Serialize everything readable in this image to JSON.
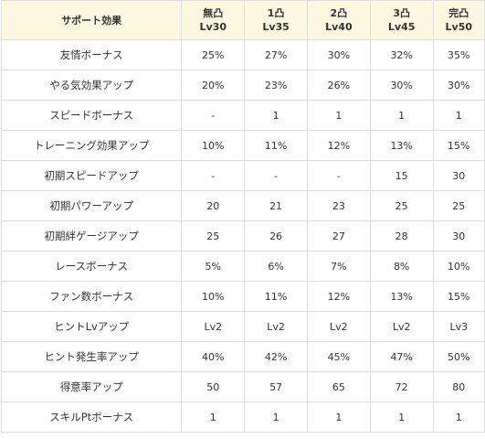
{
  "header": {
    "effect_label": "サポート効果",
    "levels": [
      {
        "name": "無凸",
        "lv": "Lv30"
      },
      {
        "name": "1凸",
        "lv": "Lv35"
      },
      {
        "name": "2凸",
        "lv": "Lv40"
      },
      {
        "name": "3凸",
        "lv": "Lv45"
      },
      {
        "name": "完凸",
        "lv": "Lv50"
      }
    ]
  },
  "rows": [
    {
      "effect": "友情ボーナス",
      "values": [
        "25%",
        "27%",
        "30%",
        "32%",
        "35%"
      ]
    },
    {
      "effect": "やる気効果アップ",
      "values": [
        "20%",
        "23%",
        "26%",
        "30%",
        "30%"
      ]
    },
    {
      "effect": "スピードボーナス",
      "values": [
        "-",
        "1",
        "1",
        "1",
        "1"
      ]
    },
    {
      "effect": "トレーニング効果アップ",
      "values": [
        "10%",
        "11%",
        "12%",
        "13%",
        "15%"
      ]
    },
    {
      "effect": "初期スピードアップ",
      "values": [
        "-",
        "-",
        "-",
        "15",
        "30"
      ]
    },
    {
      "effect": "初期パワーアップ",
      "values": [
        "20",
        "21",
        "23",
        "25",
        "25"
      ]
    },
    {
      "effect": "初期絆ゲージアップ",
      "values": [
        "25",
        "26",
        "27",
        "28",
        "30"
      ]
    },
    {
      "effect": "レースボーナス",
      "values": [
        "5%",
        "6%",
        "7%",
        "8%",
        "10%"
      ]
    },
    {
      "effect": "ファン数ボーナス",
      "values": [
        "10%",
        "11%",
        "12%",
        "13%",
        "15%"
      ]
    },
    {
      "effect": "ヒントLvアップ",
      "values": [
        "Lv2",
        "Lv2",
        "Lv2",
        "Lv2",
        "Lv3"
      ]
    },
    {
      "effect": "ヒント発生率アップ",
      "values": [
        "40%",
        "42%",
        "45%",
        "47%",
        "50%"
      ]
    },
    {
      "effect": "得意率アップ",
      "values": [
        "50",
        "57",
        "65",
        "72",
        "80"
      ]
    },
    {
      "effect": "スキルPtボーナス",
      "values": [
        "1",
        "1",
        "1",
        "1",
        "1"
      ]
    }
  ],
  "colors": {
    "header_bg": "#fdf9e0",
    "border": "#dcdcdc",
    "text": "#333333"
  }
}
